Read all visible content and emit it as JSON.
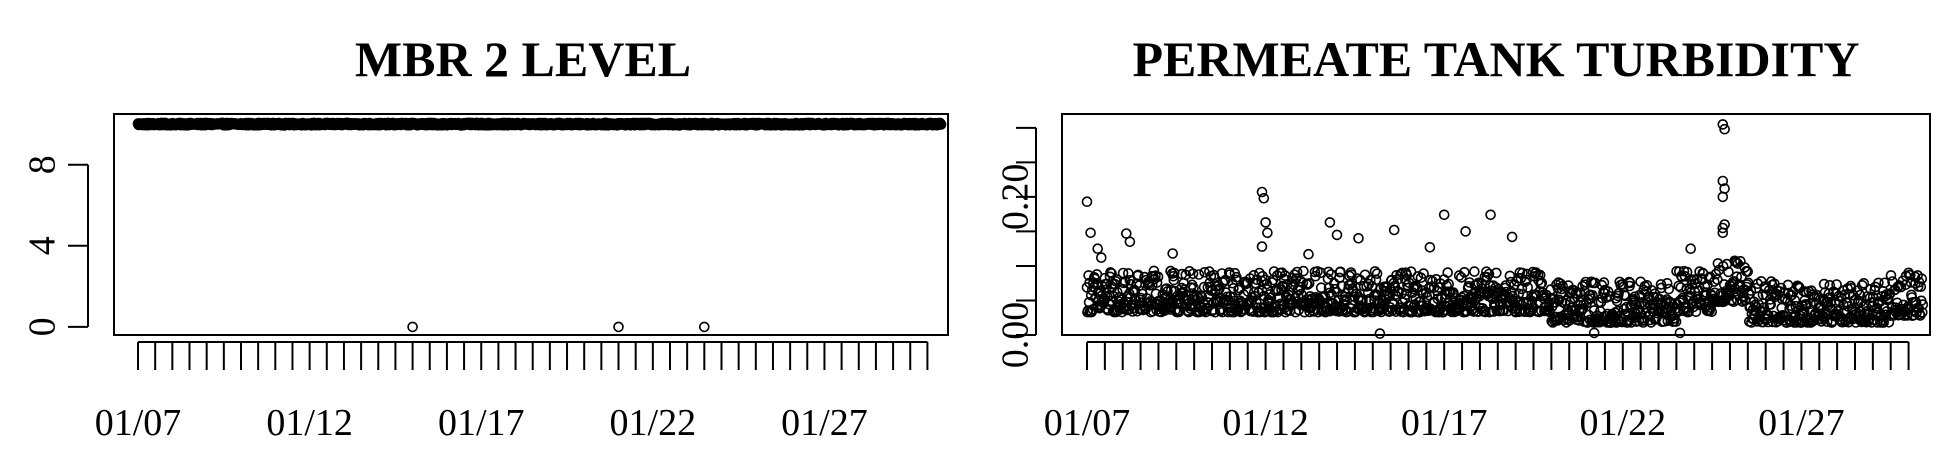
{
  "chart_data": [
    {
      "type": "scatter",
      "title": "MBR 2 LEVEL",
      "xlabel": "",
      "ylabel": "",
      "x_tick_labels": [
        "01/07",
        "01/12",
        "01/17",
        "01/22",
        "01/27"
      ],
      "x_tick_days": [
        7,
        12,
        17,
        22,
        27
      ],
      "x_minor_ticks_per_day": 2,
      "y_ticks": [
        0,
        4,
        8
      ],
      "y_tick_labels": [
        "0",
        "4",
        "8"
      ],
      "xlim": [
        6.3,
        30.6
      ],
      "ylim": [
        -0.4,
        10.5
      ],
      "grid": false,
      "x_days": [
        7.0,
        30.4
      ],
      "typical_value": 10.0,
      "outliers": [
        {
          "x": 15.0,
          "y": 0.0
        },
        {
          "x": 21.0,
          "y": 0.0
        },
        {
          "x": 23.5,
          "y": 0.0
        }
      ]
    },
    {
      "type": "scatter",
      "title": "PERMEATE TANK TURBIDITY",
      "xlabel": "",
      "ylabel": "",
      "x_tick_labels": [
        "01/07",
        "01/12",
        "01/17",
        "01/22",
        "01/27"
      ],
      "x_tick_days": [
        7,
        12,
        17,
        22,
        27
      ],
      "x_minor_ticks_per_day": 2,
      "y_ticks": [
        0.0,
        0.05,
        0.1,
        0.15,
        0.2,
        0.25,
        0.3
      ],
      "y_tick_labels": [
        "0.00",
        "",
        "",
        "",
        "0.20",
        "",
        ""
      ],
      "xlim": [
        6.3,
        30.6
      ],
      "ylim": [
        0.0,
        0.32
      ],
      "grid": false,
      "x_days": [
        7.0,
        30.4
      ],
      "typical_value": 0.06,
      "outliers": [
        {
          "x": 7.0,
          "y": 0.193
        },
        {
          "x": 7.1,
          "y": 0.148
        },
        {
          "x": 7.3,
          "y": 0.125
        },
        {
          "x": 7.4,
          "y": 0.112
        },
        {
          "x": 8.1,
          "y": 0.147
        },
        {
          "x": 8.2,
          "y": 0.135
        },
        {
          "x": 9.4,
          "y": 0.118
        },
        {
          "x": 11.9,
          "y": 0.207
        },
        {
          "x": 11.95,
          "y": 0.198
        },
        {
          "x": 12.0,
          "y": 0.163
        },
        {
          "x": 12.05,
          "y": 0.148
        },
        {
          "x": 11.9,
          "y": 0.128
        },
        {
          "x": 13.2,
          "y": 0.117
        },
        {
          "x": 13.8,
          "y": 0.163
        },
        {
          "x": 14.0,
          "y": 0.145
        },
        {
          "x": 14.6,
          "y": 0.14
        },
        {
          "x": 15.2,
          "y": 0.002
        },
        {
          "x": 15.6,
          "y": 0.152
        },
        {
          "x": 16.6,
          "y": 0.127
        },
        {
          "x": 17.0,
          "y": 0.174
        },
        {
          "x": 17.6,
          "y": 0.15
        },
        {
          "x": 18.3,
          "y": 0.174
        },
        {
          "x": 18.9,
          "y": 0.142
        },
        {
          "x": 21.2,
          "y": 0.003
        },
        {
          "x": 23.6,
          "y": 0.003
        },
        {
          "x": 24.8,
          "y": 0.305
        },
        {
          "x": 24.85,
          "y": 0.298
        },
        {
          "x": 24.8,
          "y": 0.223
        },
        {
          "x": 24.85,
          "y": 0.212
        },
        {
          "x": 24.8,
          "y": 0.2
        },
        {
          "x": 24.85,
          "y": 0.16
        },
        {
          "x": 24.8,
          "y": 0.155
        },
        {
          "x": 24.8,
          "y": 0.148
        },
        {
          "x": 23.9,
          "y": 0.125
        },
        {
          "x": 30.0,
          "y": 0.09
        }
      ]
    }
  ]
}
